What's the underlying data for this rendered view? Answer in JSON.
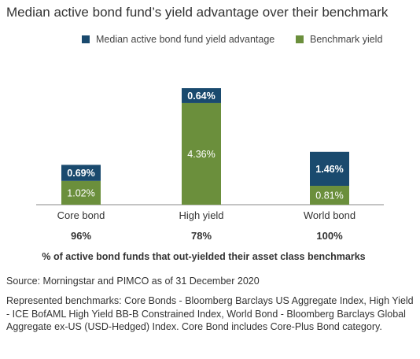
{
  "title": "Median active bond fund’s yield advantage over their benchmark",
  "colors": {
    "advantage": "#1a4a6e",
    "benchmark": "#6b8f3c",
    "axis": "#888888"
  },
  "chart_data": {
    "type": "bar",
    "stacked": true,
    "title": "Median active bond fund’s yield advantage over their benchmark",
    "categories": [
      "Core bond",
      "High yield",
      "World bond"
    ],
    "series": [
      {
        "name": "Benchmark yield",
        "values": [
          1.02,
          4.36,
          0.81
        ],
        "labels": [
          "1.02%",
          "4.36%",
          "0.81%"
        ]
      },
      {
        "name": "Median active bond fund yield advantage",
        "values": [
          0.69,
          0.64,
          1.46
        ],
        "labels": [
          "0.69%",
          "0.64%",
          "1.46%"
        ]
      }
    ],
    "legend": {
      "placement": "top",
      "items": [
        "Median active bond fund yield advantage",
        "Benchmark yield"
      ]
    },
    "out_yield_pct": [
      "96%",
      "78%",
      "100%"
    ],
    "out_yield_caption": "% of active bond funds that out-yielded their asset class benchmarks",
    "ylim": [
      0,
      5.0
    ],
    "grid": false
  },
  "source": "Source: Morningstar and PIMCO as of 31 December 2020",
  "benchmarks_note": "Represented benchmarks: Core Bonds - Bloomberg Barclays US Aggregate Index, High Yield - ICE BofAML High Yield BB-B Constrained Index, World Bond - Bloomberg Barclays Global Aggregate ex-US (USD-Hedged) Index. Core Bond includes Core-Plus Bond category."
}
